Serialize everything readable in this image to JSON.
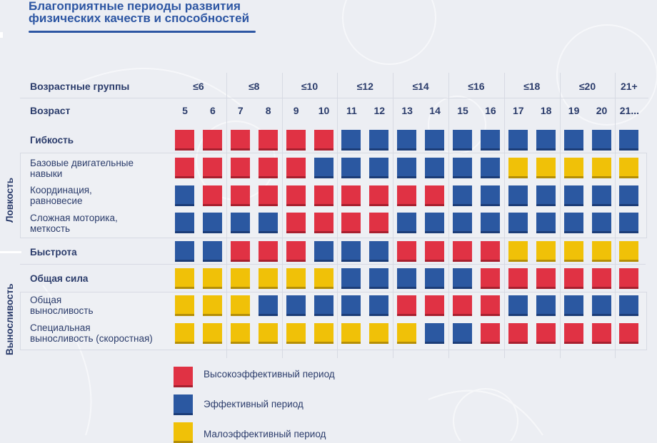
{
  "title": {
    "line1": "Благоприятные периоды развития",
    "line2": "физических качеств и способностей"
  },
  "colors": {
    "high": "#e03244",
    "medium": "#2b58a1",
    "low": "#f0c108",
    "text": "#2b3c6b",
    "title": "#2d56a3"
  },
  "chart_data": {
    "type": "heatmap",
    "title": "Благоприятные периоды развития физических качеств и способностей",
    "header_labels": {
      "age_groups": "Возрастные группы",
      "ages": "Возраст"
    },
    "age_groups": [
      "≤6",
      "≤8",
      "≤10",
      "≤12",
      "≤14",
      "≤16",
      "≤18",
      "≤20",
      "21+"
    ],
    "ages": [
      "5",
      "6",
      "7",
      "8",
      "9",
      "10",
      "11",
      "12",
      "13",
      "14",
      "15",
      "16",
      "17",
      "18",
      "19",
      "20",
      "21..."
    ],
    "groups": [
      {
        "name": "Ловкость",
        "rows": [
          "Базовые двигательные навыки",
          "Координация, равновесие",
          "Сложная моторика, меткость"
        ]
      },
      {
        "name": "Выносливость",
        "rows": [
          "Общая выносливость",
          "Специальная выносливость (скоростная)"
        ]
      }
    ],
    "rows": [
      {
        "label_line1": "Гибкость",
        "label_line2": "",
        "bold": true,
        "values": [
          "H",
          "H",
          "H",
          "H",
          "H",
          "H",
          "M",
          "M",
          "M",
          "M",
          "M",
          "M",
          "M",
          "M",
          "M",
          "M",
          "M"
        ]
      },
      {
        "label_line1": "Базовые двигательные",
        "label_line2": "навыки",
        "bold": false,
        "values": [
          "H",
          "H",
          "H",
          "H",
          "H",
          "M",
          "M",
          "M",
          "M",
          "M",
          "M",
          "M",
          "L",
          "L",
          "L",
          "L",
          "L"
        ]
      },
      {
        "label_line1": "Координация,",
        "label_line2": "равновесие",
        "bold": false,
        "values": [
          "M",
          "H",
          "H",
          "H",
          "H",
          "H",
          "H",
          "H",
          "H",
          "H",
          "M",
          "M",
          "M",
          "M",
          "M",
          "M",
          "M"
        ]
      },
      {
        "label_line1": "Сложная моторика,",
        "label_line2": "меткость",
        "bold": false,
        "values": [
          "M",
          "M",
          "M",
          "M",
          "H",
          "H",
          "H",
          "H",
          "M",
          "M",
          "M",
          "M",
          "M",
          "M",
          "M",
          "M",
          "M"
        ]
      },
      {
        "label_line1": "Быстрота",
        "label_line2": "",
        "bold": true,
        "values": [
          "M",
          "M",
          "H",
          "H",
          "H",
          "M",
          "M",
          "M",
          "H",
          "H",
          "H",
          "H",
          "L",
          "L",
          "L",
          "L",
          "L"
        ]
      },
      {
        "label_line1": "Общая сила",
        "label_line2": "",
        "bold": true,
        "values": [
          "L",
          "L",
          "L",
          "L",
          "L",
          "L",
          "M",
          "M",
          "M",
          "M",
          "M",
          "H",
          "H",
          "H",
          "H",
          "H",
          "H"
        ]
      },
      {
        "label_line1": "Общая",
        "label_line2": "выносливость",
        "bold": false,
        "values": [
          "L",
          "L",
          "L",
          "M",
          "M",
          "M",
          "M",
          "M",
          "H",
          "H",
          "H",
          "H",
          "M",
          "M",
          "M",
          "M",
          "M"
        ]
      },
      {
        "label_line1": "Специальная",
        "label_line2": "выносливость (скоростная)",
        "bold": false,
        "values": [
          "L",
          "L",
          "L",
          "L",
          "L",
          "L",
          "L",
          "L",
          "L",
          "M",
          "M",
          "H",
          "H",
          "H",
          "H",
          "H",
          "H"
        ]
      }
    ],
    "legend": [
      {
        "key": "H",
        "label": "Высокоэффективный период"
      },
      {
        "key": "M",
        "label": "Эффективный период"
      },
      {
        "key": "L",
        "label": "Малоэффективный период"
      }
    ]
  }
}
